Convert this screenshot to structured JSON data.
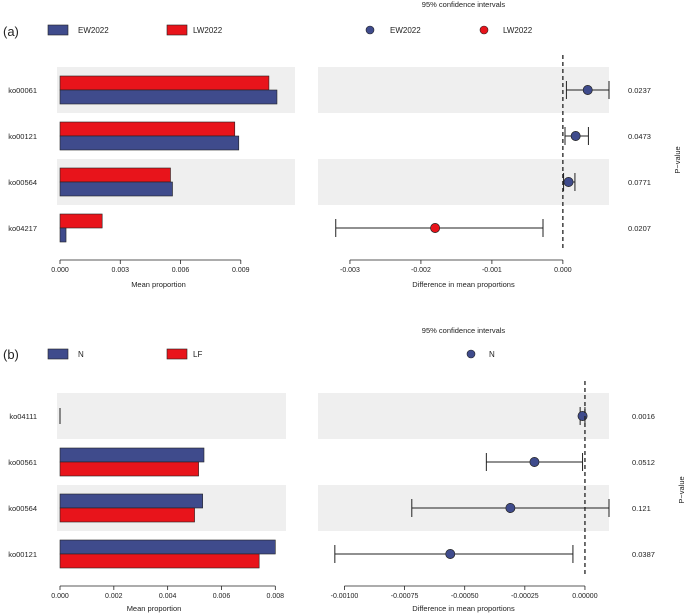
{
  "colors": {
    "blue": "#3f4b8c",
    "red": "#e8141b",
    "stripe": "#efefef",
    "axis": "#222222"
  },
  "chart_data": [
    {
      "type": "bar",
      "panel_label": "(a)",
      "legend_left": [
        "EW2022",
        "LW2022"
      ],
      "legend_right": [
        "EW2022",
        "LW2022"
      ],
      "ci_title": "95% confidence intervals",
      "pvalue_label": "P−value",
      "xlabel_bar": "Mean proportion",
      "xlabel_diff": "Difference in mean proportions",
      "bar_xlim": [
        0,
        0.0113
      ],
      "bar_ticks": [
        0.0,
        0.003,
        0.006,
        0.009
      ],
      "bar_tick_labels": [
        "0.000",
        "0.003",
        "0.006",
        "0.009"
      ],
      "diff_xlim": [
        -0.00345,
        0.00065
      ],
      "diff_ticks": [
        -0.003,
        -0.002,
        -0.001,
        0.0
      ],
      "diff_tick_labels": [
        "-0.003",
        "-0.002",
        "-0.001",
        "0.000"
      ],
      "categories": [
        "ko00061",
        "ko00121",
        "ko00564",
        "ko04217"
      ],
      "series": [
        {
          "name": "LW2022",
          "color": "#e8141b",
          "values": [
            0.0104,
            0.0087,
            0.0055,
            0.0021
          ]
        },
        {
          "name": "EW2022",
          "color": "#3f4b8c",
          "values": [
            0.0108,
            0.0089,
            0.0056,
            0.0003
          ]
        }
      ],
      "diff": [
        {
          "estimate": 0.00035,
          "lower": 5e-05,
          "upper": 0.00065,
          "color": "#3f4b8c"
        },
        {
          "estimate": 0.00018,
          "lower": 3e-05,
          "upper": 0.00036,
          "color": "#3f4b8c"
        },
        {
          "estimate": 8e-05,
          "lower": 1e-05,
          "upper": 0.00017,
          "color": "#3f4b8c"
        },
        {
          "estimate": -0.0018,
          "lower": -0.0032,
          "upper": -0.00028,
          "color": "#e8141b"
        }
      ],
      "pvalues": [
        "0.0237",
        "0.0473",
        "0.0771",
        "0.0207"
      ]
    },
    {
      "type": "bar",
      "panel_label": "(b)",
      "legend_left": [
        "N",
        "LF"
      ],
      "legend_right": [
        "N"
      ],
      "ci_title": "95% confidence intervals",
      "pvalue_label": "P−value",
      "xlabel_bar": "Mean proportion",
      "xlabel_diff": "Difference in mean proportions",
      "bar_xlim": [
        0,
        0.0081
      ],
      "bar_ticks": [
        0.0,
        0.002,
        0.004,
        0.006,
        0.008
      ],
      "bar_tick_labels": [
        "0.000",
        "0.002",
        "0.004",
        "0.006",
        "0.008"
      ],
      "diff_xlim": [
        -0.00111,
        0.0001
      ],
      "diff_ticks": [
        -0.001,
        -0.00075,
        -0.0005,
        -0.00025,
        0.0
      ],
      "diff_tick_labels": [
        "-0.00100",
        "-0.00075",
        "-0.00050",
        "-0.00025",
        "0.00000"
      ],
      "categories": [
        "ko04111",
        "ko00561",
        "ko00564",
        "ko00121"
      ],
      "series": [
        {
          "name": "N",
          "color": "#3f4b8c",
          "values": [
            0.0,
            0.00535,
            0.0053,
            0.008
          ]
        },
        {
          "name": "LF",
          "color": "#e8141b",
          "values": [
            0.0,
            0.00515,
            0.005,
            0.0074
          ]
        }
      ],
      "diff": [
        {
          "estimate": -1e-05,
          "lower": -2e-05,
          "upper": 0.0,
          "color": "#3f4b8c"
        },
        {
          "estimate": -0.00021,
          "lower": -0.00041,
          "upper": -1e-05,
          "color": "#3f4b8c"
        },
        {
          "estimate": -0.00031,
          "lower": -0.00072,
          "upper": 0.0001,
          "color": "#3f4b8c"
        },
        {
          "estimate": -0.00056,
          "lower": -0.00104,
          "upper": -5e-05,
          "color": "#3f4b8c"
        }
      ],
      "pvalues": [
        "0.0016",
        "0.0512",
        "0.121",
        "0.0387"
      ]
    }
  ]
}
